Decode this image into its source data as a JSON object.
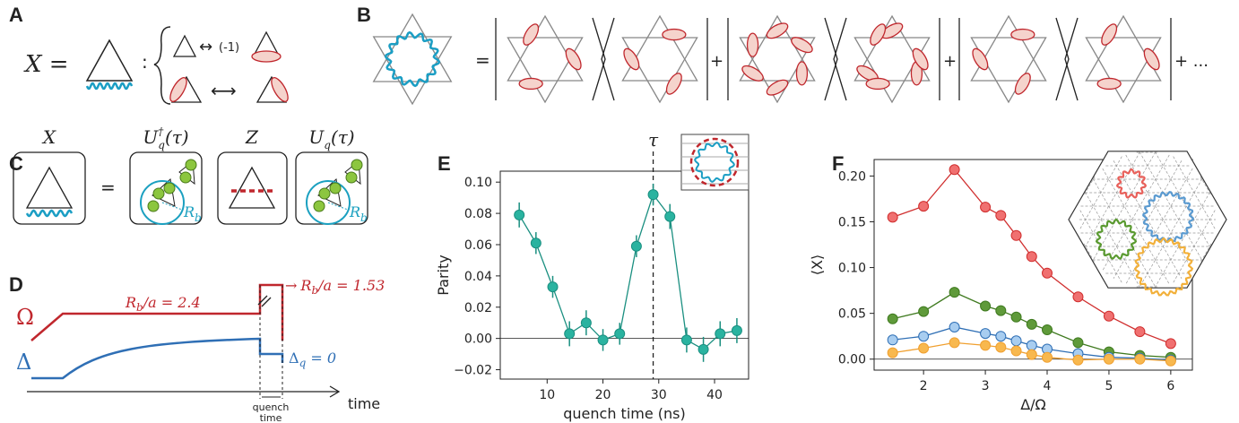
{
  "panel_labels": {
    "a": "A",
    "b": "B",
    "c": "C",
    "d": "D",
    "e": "E",
    "f": "F"
  },
  "panel_a": {
    "lhs": "X =",
    "colon": ":",
    "arrow1": "↔",
    "minus_one": "(-1)",
    "arrow2": "⟷"
  },
  "panel_b": {
    "equals": "=",
    "plus1": "+",
    "plus2": "+",
    "plus_dots": "+ ..."
  },
  "panel_c": {
    "x": "X",
    "udag": {
      "base": "U",
      "sub": "q",
      "sup": "†",
      "arg": "(τ)"
    },
    "equals": "=",
    "z": "Z",
    "u": {
      "base": "U",
      "sub": "q",
      "arg": "(τ)"
    },
    "rb1": {
      "base": "R",
      "sub": "b"
    },
    "rb2": {
      "base": "R",
      "sub": "b"
    }
  },
  "panel_d": {
    "omega": "Ω",
    "delta": "Δ",
    "rb_before": {
      "base": "R",
      "sub": "b",
      "rest": "/a = 2.4"
    },
    "rb_after": {
      "arrow": "→",
      "base": "R",
      "sub": "b",
      "rest": "/a = 1.53"
    },
    "delta_q": {
      "base": "Δ",
      "sub": "q",
      "rest": " = 0"
    },
    "time": "time",
    "quench": [
      "quench",
      "time"
    ]
  },
  "chart_data": [
    {
      "type": "line",
      "x_label": "quench time (ns)",
      "y_label": "Parity",
      "color": "#1a8f80",
      "marker_fill": "#2ab3a0",
      "x": [
        5,
        8,
        11,
        14,
        17,
        20,
        23,
        26,
        29,
        32,
        35,
        38,
        41,
        44
      ],
      "values": [
        0.079,
        0.061,
        0.033,
        0.003,
        0.01,
        -0.001,
        0.003,
        0.059,
        0.092,
        0.078,
        -0.001,
        -0.007,
        0.003,
        0.005
      ],
      "errors": [
        0.008,
        0.007,
        0.007,
        0.008,
        0.008,
        0.007,
        0.007,
        0.007,
        0.007,
        0.008,
        0.008,
        0.008,
        0.008,
        0.008
      ],
      "xlim": [
        1.6,
        46.1
      ],
      "ylim": [
        -0.026,
        0.107
      ],
      "xticks": [
        10,
        20,
        30,
        40
      ],
      "yticks": [
        {
          "value": -0.02,
          "label": "−0.02"
        },
        {
          "value": 0,
          "label": "0.00"
        },
        0.02,
        0.04,
        0.06,
        0.08,
        {
          "value": 0.1,
          "label": "0.10"
        }
      ],
      "axhline": 0,
      "vline": {
        "x": 29,
        "label": "τ"
      }
    },
    {
      "type": "line",
      "x_label": "Δ/Ω",
      "y_label": "⟨X⟩",
      "x": [
        1.5,
        2,
        2.5,
        3,
        3.25,
        3.5,
        3.75,
        4,
        4.5,
        5,
        5.5,
        6
      ],
      "series": [
        {
          "color": "#d02e2e",
          "marker_fill": "#f07070",
          "values": [
            0.155,
            0.167,
            0.207,
            0.166,
            0.157,
            0.135,
            0.112,
            0.094,
            0.068,
            0.047,
            0.03,
            0.017
          ]
        },
        {
          "color": "#3f7a1f",
          "marker_fill": "#5f9a3a",
          "values": [
            0.044,
            0.052,
            0.073,
            0.058,
            0.053,
            0.046,
            0.038,
            0.032,
            0.018,
            0.008,
            0.004,
            0.002
          ]
        },
        {
          "color": "#2f6fb5",
          "marker_fill": "#a8cdf0",
          "values": [
            0.021,
            0.025,
            0.035,
            0.028,
            0.025,
            0.02,
            0.015,
            0.011,
            0.006,
            0.002,
            0.001,
            -0.001
          ]
        },
        {
          "color": "#f0a030",
          "marker_fill": "#f8b84e",
          "values": [
            0.007,
            0.012,
            0.018,
            0.015,
            0.013,
            0.009,
            0.005,
            0.002,
            -0.001,
            0.0,
            0.0,
            -0.002
          ]
        }
      ],
      "xlim": [
        1.2,
        6.35
      ],
      "ylim": [
        -0.012,
        0.218
      ],
      "xticks": [
        2,
        3,
        4,
        5,
        6
      ],
      "yticks": [
        {
          "value": 0,
          "label": "0.00"
        },
        0.05,
        {
          "value": 0.1,
          "label": "0.10"
        },
        0.15,
        {
          "value": 0.2,
          "label": "0.20"
        }
      ],
      "axhline": 0
    }
  ]
}
